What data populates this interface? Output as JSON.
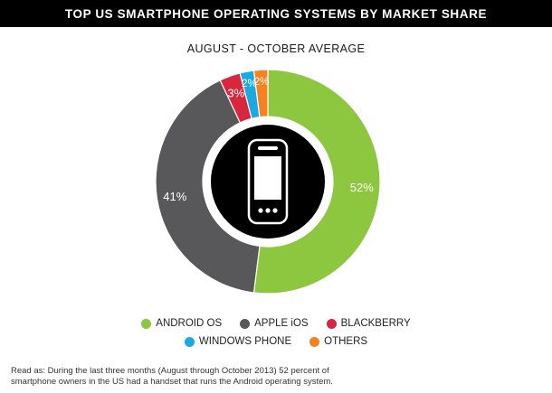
{
  "chart_data": {
    "type": "pie",
    "title": "TOP US SMARTPHONE OPERATING SYSTEMS BY MARKET SHARE",
    "subtitle": "AUGUST - OCTOBER AVERAGE",
    "slices": [
      {
        "label": "ANDROID OS",
        "value": 52,
        "display": "52%",
        "color": "#8dc63f"
      },
      {
        "label": "APPLE iOS",
        "value": 41,
        "display": "41%",
        "color": "#58585a"
      },
      {
        "label": "BLACKBERRY",
        "value": 3,
        "display": "3%",
        "color": "#d7263d"
      },
      {
        "label": "WINDOWS PHONE",
        "value": 2,
        "display": "2%",
        "color": "#1ba9e1"
      },
      {
        "label": "OTHERS",
        "value": 2,
        "display": "2%",
        "color": "#f58220"
      }
    ],
    "legend_position": "bottom",
    "center_icon": "smartphone-icon"
  },
  "footnote": {
    "line1": "Read as: During the last three months (August through October 2013) 52 percent of",
    "line2": "smartphone owners in the US had a handset that runs the Android operating system."
  }
}
